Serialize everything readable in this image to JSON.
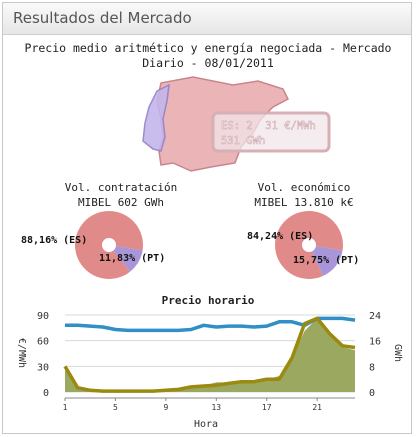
{
  "header": {
    "title": "Resultados del Mercado"
  },
  "market": {
    "title_line1": "Precio medio aritmético y energía negociada - Mercado",
    "title_line2": "Diario - 08/01/2011",
    "map_box_line1": "ES: 2  31 €/MWh",
    "map_box_line2": "531 GWh",
    "colors": {
      "es": "#e08a8a",
      "pt": "#a996d8"
    }
  },
  "vol_contratacion": {
    "title": "Vol. contratación",
    "subtitle": "MIBEL 602 GWh",
    "es_label": "88,16% (ES)",
    "pt_label": "11,83% (PT)",
    "es_pct": 88.16,
    "pt_pct": 11.83
  },
  "vol_economico": {
    "title": "Vol. económico",
    "subtitle": "MIBEL 13.810 k€",
    "es_label": "84,24% (ES)",
    "pt_label": "15,75% (PT)",
    "es_pct": 84.24,
    "pt_pct": 15.75
  },
  "chart_data": {
    "type": "line",
    "title": "Precio horario",
    "xlabel": "Hora",
    "ylabel_left": "€/MWh",
    "ylabel_right": "GWh",
    "x": [
      1,
      2,
      3,
      4,
      5,
      6,
      7,
      8,
      9,
      10,
      11,
      12,
      13,
      14,
      15,
      16,
      17,
      18,
      19,
      20,
      21,
      22,
      23,
      24
    ],
    "x_ticks": [
      "1",
      "5",
      "9",
      "13",
      "17",
      "21"
    ],
    "x_tick_values": [
      1,
      5,
      9,
      13,
      17,
      21
    ],
    "y_left_ticks": [
      "90",
      "60",
      "30",
      "0"
    ],
    "y_left_tick_values": [
      90,
      60,
      30,
      0
    ],
    "y_right_ticks": [
      "24",
      "16",
      "8",
      "0"
    ],
    "y_right_tick_values": [
      24,
      16,
      8,
      0
    ],
    "y_left_lim": [
      0,
      90
    ],
    "y_right_lim": [
      0,
      24
    ],
    "series": [
      {
        "axis": "left",
        "color": "#2f8fc6",
        "values": [
          78,
          78,
          77,
          76,
          73,
          72,
          72,
          72,
          72,
          72,
          73,
          78,
          76,
          77,
          77,
          76,
          77,
          82,
          82,
          78,
          86,
          86,
          86,
          84
        ]
      },
      {
        "axis": "left",
        "color": "#9a8a10",
        "values": [
          30,
          5,
          2,
          1,
          1,
          1,
          1,
          1,
          2,
          3,
          6,
          7,
          8,
          10,
          12,
          12,
          15,
          15,
          40,
          80,
          86,
          68,
          54,
          52
        ]
      },
      {
        "axis": "right",
        "color": "#9aa860",
        "fill": true,
        "values": [
          7,
          1,
          0,
          0,
          0,
          0,
          0,
          0,
          0,
          1,
          2,
          2,
          3,
          3,
          3,
          3,
          4,
          5,
          11,
          19,
          23,
          18,
          14,
          13
        ]
      }
    ]
  }
}
